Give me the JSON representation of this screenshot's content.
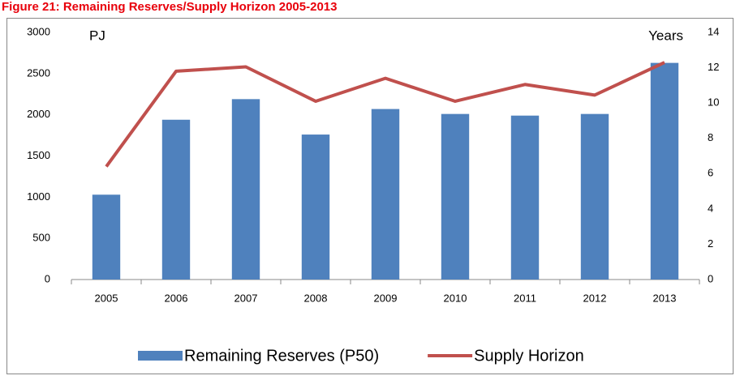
{
  "chart_data": {
    "type": "bar",
    "title": "Figure 21: Remaining Reserves/Supply Horizon 2005-2013",
    "y_label": "PJ",
    "y2_label": "Years",
    "categories": [
      "2005",
      "2006",
      "2007",
      "2008",
      "2009",
      "2010",
      "2011",
      "2012",
      "2013"
    ],
    "series": [
      {
        "name": "Remaining Reserves (P50)",
        "type": "bar",
        "color": "#4f81bd",
        "values": [
          1030,
          1940,
          2190,
          1760,
          2070,
          2010,
          1990,
          2010,
          2630
        ]
      },
      {
        "name": "Supply Horizon",
        "type": "line",
        "axis": "y2",
        "color": "#c0504d",
        "values": [
          6.4,
          11.8,
          12.05,
          10.1,
          11.4,
          10.1,
          11.05,
          10.45,
          12.3
        ]
      }
    ],
    "ylim": [
      0,
      3000
    ],
    "yticks": [
      0,
      500,
      1000,
      1500,
      2000,
      2500,
      3000
    ],
    "y2lim": [
      0,
      14
    ],
    "y2ticks": [
      0,
      2,
      4,
      6,
      8,
      10,
      12,
      14
    ],
    "grid": false,
    "legend": "bottom"
  }
}
